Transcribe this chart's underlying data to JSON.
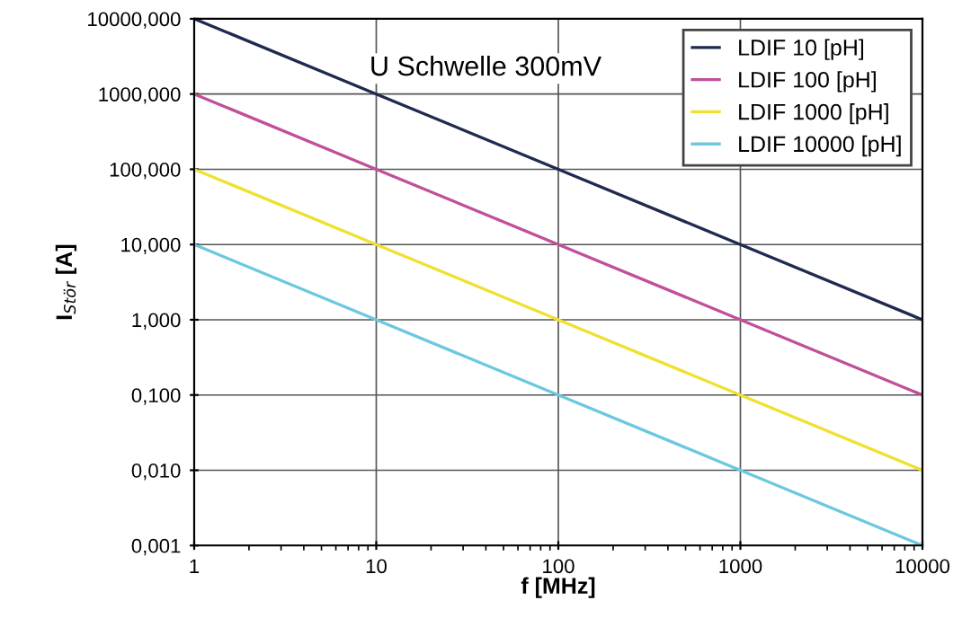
{
  "chart_data": {
    "type": "line",
    "xlabel": "f [MHz]",
    "ylabel": "I$_{Stör}$ [A]",
    "annotations": [
      "U Schwelle 300mV"
    ],
    "x": [
      1,
      10,
      100,
      1000,
      10000
    ],
    "series": [
      {
        "name": "LDIF 10 [pH]",
        "color": "#1f2a4f",
        "values": [
          10000,
          1000,
          100,
          10,
          1
        ]
      },
      {
        "name": "LDIF 100 [pH]",
        "color": "#c0509a",
        "values": [
          1000,
          100,
          10,
          1,
          0.1
        ]
      },
      {
        "name": "LDIF 1000 [pH]",
        "color": "#f0e030",
        "values": [
          100,
          10,
          1,
          0.1,
          0.01
        ]
      },
      {
        "name": "LDIF 10000 [pH]",
        "color": "#6cc8e0",
        "values": [
          10,
          1,
          0.1,
          0.01,
          0.001
        ]
      }
    ],
    "log": "xy",
    "xlim": [
      1,
      10000
    ],
    "ylim": [
      0.001,
      10000
    ],
    "xticks": [
      1,
      10,
      100,
      1000,
      10000
    ],
    "yticks": [
      {
        "value": 0.001,
        "label": "0,001"
      },
      {
        "value": 0.01,
        "label": "0,010"
      },
      {
        "value": 0.1,
        "label": "0,100"
      },
      {
        "value": 1,
        "label": "1,000"
      },
      {
        "value": 10,
        "label": "10,000"
      },
      {
        "value": 100,
        "label": "100,000"
      },
      {
        "value": 1000,
        "label": "1000,000"
      },
      {
        "value": 10000,
        "label": "10000,000"
      }
    ],
    "grid": true,
    "legend": "top right",
    "marker": "none",
    "line_style": "solid"
  }
}
